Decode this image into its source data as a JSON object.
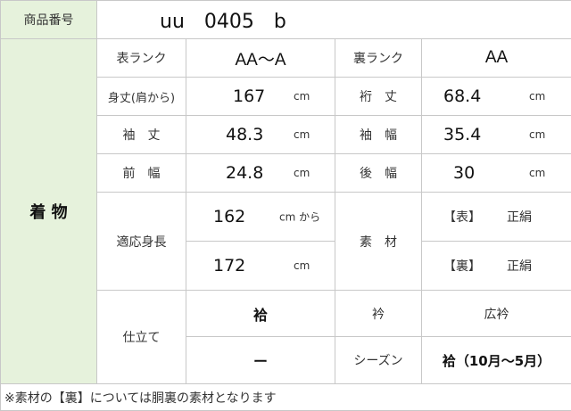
{
  "product": {
    "label": "商品番号",
    "value": "uu　0405　b"
  },
  "section_label": "着 物",
  "rows": {
    "rank": {
      "front_label": "表ランク",
      "front_value": "AA〜A",
      "back_label": "裏ランク",
      "back_value": "AA"
    },
    "r1": {
      "l1": "身丈(肩から)",
      "v1": "167",
      "u1": "cm",
      "l2": "裄　丈",
      "v2": "68.4",
      "u2": "cm"
    },
    "r2": {
      "l1": "袖　丈",
      "v1": "48.3",
      "u1": "cm",
      "l2": "袖　幅",
      "v2": "35.4",
      "u2": "cm"
    },
    "r3": {
      "l1": "前　幅",
      "v1": "24.8",
      "u1": "cm",
      "l2": "後　幅",
      "v2": "30",
      "u2": "cm"
    },
    "height": {
      "label": "適応身長",
      "from": "162",
      "from_unit": "cm から",
      "to": "172",
      "to_unit": "cm"
    },
    "material": {
      "label": "素　材",
      "front_tag": "【表】",
      "front": "正絹",
      "back_tag": "【裏】",
      "back": "正絹"
    },
    "tailoring": {
      "label": "仕立て",
      "value": "袷",
      "collar_label": "衿",
      "collar": "広衿",
      "extra": "ー",
      "season_label": "シーズン",
      "season": "袷（10月〜5月）"
    }
  },
  "note": "※素材の【裏】については胴裏の素材となります"
}
